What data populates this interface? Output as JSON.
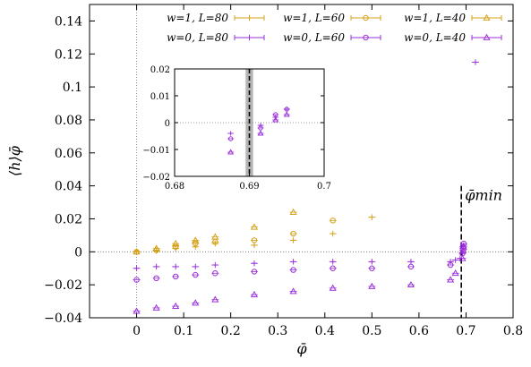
{
  "chart_data": [
    {
      "type": "scatter",
      "title": "",
      "xlabel": "φ̄",
      "ylabel": "⟨h⟩φ̄",
      "xlim": [
        -0.1,
        0.8
      ],
      "ylim": [
        -0.04,
        0.15
      ],
      "xticks": [
        "0",
        "0.1",
        "0.2",
        "0.3",
        "0.4",
        "0.5",
        "0.6",
        "0.7",
        "0.8"
      ],
      "yticks": [
        "−0.04",
        "−0.02",
        "0",
        "0.02",
        "0.04",
        "0.06",
        "0.08",
        "0.1",
        "0.12",
        "0.14"
      ],
      "grid": false,
      "legend_position": "top",
      "annotation": "φ̄min",
      "annotation_x": 0.69,
      "colors": {
        "w1": "#d4a017",
        "w0": "#9b30d9"
      },
      "series": [
        {
          "name": "w=1, L=80",
          "marker": "plus",
          "color": "#d4a017",
          "x": [
            0,
            0.042,
            0.083,
            0.125,
            0.167,
            0.25,
            0.333,
            0.417,
            0.5
          ],
          "y": [
            0,
            0.0005,
            0.002,
            0.003,
            0.005,
            0.004,
            0.007,
            0.011,
            0.021
          ]
        },
        {
          "name": "w=1, L=60",
          "marker": "circle",
          "color": "#d4a017",
          "x": [
            0,
            0.042,
            0.083,
            0.125,
            0.167,
            0.25,
            0.333,
            0.417
          ],
          "y": [
            0,
            0.001,
            0.003,
            0.005,
            0.006,
            0.007,
            0.011,
            0.019
          ]
        },
        {
          "name": "w=1, L=40",
          "marker": "triangle",
          "color": "#d4a017",
          "x": [
            0,
            0.042,
            0.083,
            0.125,
            0.167,
            0.25,
            0.333
          ],
          "y": [
            0,
            0.002,
            0.005,
            0.007,
            0.009,
            0.015,
            0.024
          ]
        },
        {
          "name": "w=0, L=80",
          "marker": "plus",
          "color": "#9b30d9",
          "x": [
            0,
            0.042,
            0.083,
            0.125,
            0.167,
            0.25,
            0.333,
            0.417,
            0.5,
            0.583,
            0.667,
            0.6775,
            0.6875,
            0.6925,
            0.6935,
            0.695,
            0.72
          ],
          "y": [
            -0.01,
            -0.009,
            -0.009,
            -0.009,
            -0.008,
            -0.007,
            -0.006,
            -0.006,
            -0.006,
            -0.006,
            -0.006,
            -0.005,
            -0.004,
            -0.001,
            0.002,
            0.004,
            0.115
          ]
        },
        {
          "name": "w=0, L=60",
          "marker": "circle",
          "color": "#9b30d9",
          "x": [
            0,
            0.042,
            0.083,
            0.125,
            0.167,
            0.25,
            0.333,
            0.417,
            0.5,
            0.583,
            0.667,
            0.6925,
            0.6935,
            0.695
          ],
          "y": [
            -0.017,
            -0.016,
            -0.015,
            -0.014,
            -0.013,
            -0.012,
            -0.011,
            -0.01,
            -0.01,
            -0.009,
            -0.008,
            -0.001,
            0.003,
            0.005
          ]
        },
        {
          "name": "w=0, L=40",
          "marker": "triangle",
          "color": "#9b30d9",
          "x": [
            0,
            0.042,
            0.083,
            0.125,
            0.167,
            0.25,
            0.333,
            0.417,
            0.5,
            0.583,
            0.667,
            0.6775,
            0.6925,
            0.6935,
            0.695
          ],
          "y": [
            -0.036,
            -0.034,
            -0.033,
            -0.031,
            -0.029,
            -0.026,
            -0.024,
            -0.022,
            -0.021,
            -0.02,
            -0.017,
            -0.013,
            -0.004,
            0.001,
            0.003
          ]
        }
      ]
    },
    {
      "type": "scatter",
      "title": "",
      "xlim": [
        0.68,
        0.7
      ],
      "ylim": [
        -0.02,
        0.02
      ],
      "xticks": [
        "0.68",
        "0.69",
        "0.7"
      ],
      "yticks": [
        "−0.02",
        "−0.01",
        "0",
        "0.01",
        "0.02"
      ],
      "band": [
        0.6895,
        0.6905
      ],
      "vline": 0.69,
      "series": [
        {
          "marker": "plus",
          "color": "#9b30d9",
          "x": [
            0.6875,
            0.6915,
            0.6935,
            0.695
          ],
          "y": [
            -0.004,
            -0.001,
            0.002,
            0.005
          ]
        },
        {
          "marker": "circle",
          "color": "#9b30d9",
          "x": [
            0.6875,
            0.6915,
            0.6935,
            0.695
          ],
          "y": [
            -0.006,
            -0.002,
            0.003,
            0.005
          ]
        },
        {
          "marker": "triangle",
          "color": "#9b30d9",
          "x": [
            0.6875,
            0.6915,
            0.6935,
            0.695
          ],
          "y": [
            -0.011,
            -0.004,
            0.001,
            0.003
          ]
        }
      ]
    }
  ]
}
